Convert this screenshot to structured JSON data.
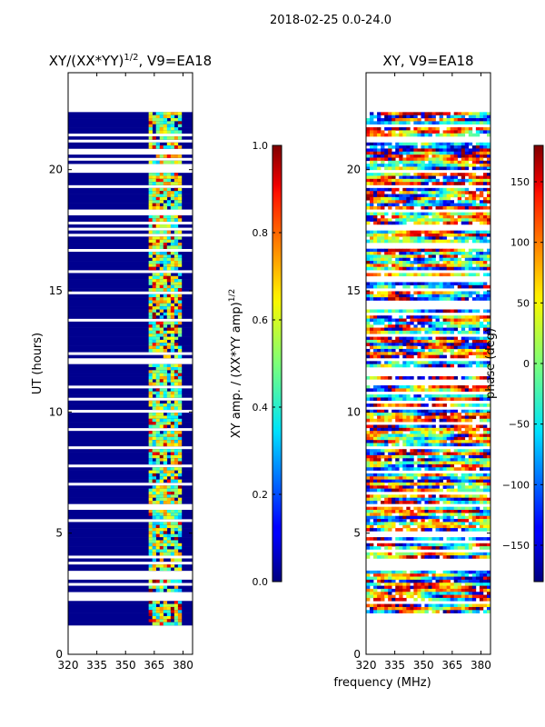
{
  "suptitle": "2018-02-25 0.0-24.0",
  "chart_data": [
    {
      "type": "heatmap",
      "title_main": "XY/(XX*YY)",
      "title_sup": "1/2",
      "title_tail": ", V9=EA18",
      "xlabel": "",
      "ylabel": "UT (hours)",
      "xlim": [
        320,
        385
      ],
      "ylim": [
        0,
        24
      ],
      "xticks": [
        320,
        335,
        350,
        365,
        380
      ],
      "yticks": [
        0,
        5,
        10,
        15,
        20
      ],
      "data_range_hours": [
        1.2,
        22.5
      ],
      "colorbar": {
        "label_main": "XY amp. / (XX*YY amp)",
        "label_sup": "1/2",
        "range": [
          0.0,
          1.0
        ],
        "ticks": [
          0.0,
          0.2,
          0.4,
          0.6,
          0.8,
          1.0
        ],
        "tick_labels": [
          "0.0",
          "0.2",
          "0.4",
          "0.6",
          "0.8",
          "1.0"
        ]
      }
    },
    {
      "type": "heatmap",
      "title": "XY, V9=EA18",
      "xlabel": "frequency (MHz)",
      "ylabel": "",
      "xlim": [
        320,
        385
      ],
      "ylim": [
        0,
        24
      ],
      "xticks": [
        320,
        335,
        350,
        365,
        380
      ],
      "yticks": [
        0,
        5,
        10,
        15,
        20
      ],
      "data_range_hours": [
        1.2,
        22.5
      ],
      "colorbar": {
        "label": "phase (deg)",
        "range": [
          -180,
          180
        ],
        "ticks": [
          -150,
          -100,
          -50,
          0,
          50,
          100,
          150
        ],
        "tick_labels": [
          "−150",
          "−100",
          "−50",
          "0",
          "50",
          "100",
          "150"
        ]
      }
    }
  ]
}
